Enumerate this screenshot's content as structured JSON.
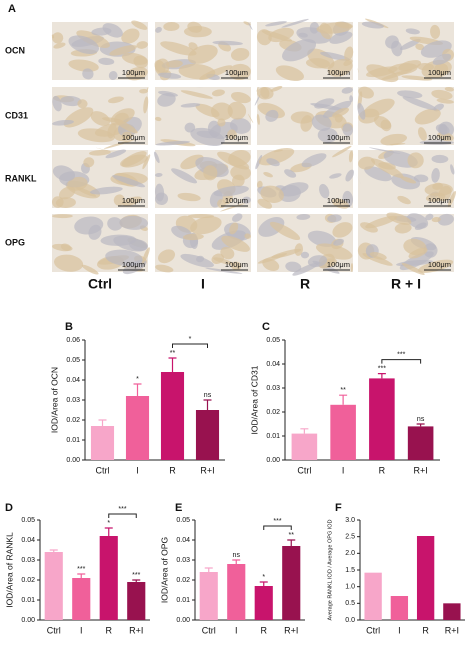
{
  "figure_a": {
    "label": "A",
    "rows": [
      "OCN",
      "CD31",
      "RANKL",
      "OPG"
    ],
    "columns": [
      "Ctrl",
      "I",
      "R",
      "R + I"
    ],
    "scale_bar": "100μm"
  },
  "chart_data": [
    {
      "type": "bar",
      "panel": "B",
      "ylabel": "IOD/Area of OCN",
      "categories": [
        "Ctrl",
        "I",
        "R",
        "R+I"
      ],
      "values": [
        0.017,
        0.032,
        0.044,
        0.025
      ],
      "errors": [
        0.003,
        0.006,
        0.007,
        0.005
      ],
      "annotations": [
        null,
        "*",
        "**",
        "ns"
      ],
      "comparison": {
        "categories": [
          "R",
          "R+I"
        ],
        "label": "*"
      },
      "colors": [
        "#f7a6c9",
        "#f0609a",
        "#c8146c",
        "#98124f"
      ],
      "ylim": [
        0,
        0.06
      ],
      "yticks": [
        {
          "value": 0,
          "label": "0.00"
        },
        0.01,
        0.02,
        0.03,
        0.04,
        0.05,
        0.06
      ]
    },
    {
      "type": "bar",
      "panel": "C",
      "ylabel": "IOD/Area of CD31",
      "categories": [
        "Ctrl",
        "I",
        "R",
        "R+I"
      ],
      "values": [
        0.011,
        0.023,
        0.034,
        0.014
      ],
      "errors": [
        0.002,
        0.004,
        0.002,
        0.001
      ],
      "annotations": [
        null,
        "**",
        "***",
        "ns"
      ],
      "comparison": {
        "categories": [
          "R",
          "R+I"
        ],
        "label": "***"
      },
      "colors": [
        "#f7a6c9",
        "#f0609a",
        "#c8146c",
        "#98124f"
      ],
      "ylim": [
        0,
        0.05
      ],
      "yticks": [
        {
          "value": 0,
          "label": "0.00"
        },
        0.01,
        0.02,
        0.03,
        0.04,
        0.05
      ]
    },
    {
      "type": "bar",
      "panel": "D",
      "ylabel": "IOD/Area of RANKL",
      "categories": [
        "Ctrl",
        "I",
        "R",
        "R+I"
      ],
      "values": [
        0.034,
        0.021,
        0.042,
        0.019
      ],
      "errors": [
        0.001,
        0.002,
        0.004,
        0.001
      ],
      "annotations": [
        null,
        "***",
        "*",
        "***"
      ],
      "comparison": {
        "categories": [
          "R",
          "R+I"
        ],
        "label": "***"
      },
      "colors": [
        "#f7a6c9",
        "#f0609a",
        "#c8146c",
        "#98124f"
      ],
      "ylim": [
        0,
        0.05
      ],
      "yticks": [
        {
          "value": 0,
          "label": "0.00"
        },
        0.01,
        0.02,
        0.03,
        0.04,
        0.05
      ]
    },
    {
      "type": "bar",
      "panel": "E",
      "ylabel": "IOD/Area of OPG",
      "categories": [
        "Ctrl",
        "I",
        "R",
        "R+I"
      ],
      "values": [
        0.024,
        0.028,
        0.017,
        0.037
      ],
      "errors": [
        0.002,
        0.002,
        0.002,
        0.003
      ],
      "annotations": [
        null,
        "ns",
        "*",
        "**"
      ],
      "comparison": {
        "categories": [
          "R",
          "R+I"
        ],
        "label": "***"
      },
      "colors": [
        "#f7a6c9",
        "#f0609a",
        "#c8146c",
        "#98124f"
      ],
      "ylim": [
        0,
        0.05
      ],
      "yticks": [
        {
          "value": 0,
          "label": "0.00"
        },
        0.01,
        0.02,
        0.03,
        0.04,
        0.05
      ]
    },
    {
      "type": "bar",
      "panel": "F",
      "ylabel": "Average RANKL IOD / Average OPG IOD",
      "categories": [
        "Ctrl",
        "I",
        "R",
        "R+I"
      ],
      "values": [
        1.42,
        0.72,
        2.52,
        0.5
      ],
      "colors": [
        "#f7a6c9",
        "#f0609a",
        "#c8146c",
        "#98124f"
      ],
      "ylim": [
        0,
        3.0
      ],
      "yticks": [
        {
          "value": 0,
          "label": "0.0"
        },
        0.5,
        {
          "value": 1,
          "label": "1.0"
        },
        1.5,
        {
          "value": 2,
          "label": "2.0"
        },
        2.5,
        {
          "value": 3,
          "label": "3.0"
        }
      ]
    }
  ]
}
